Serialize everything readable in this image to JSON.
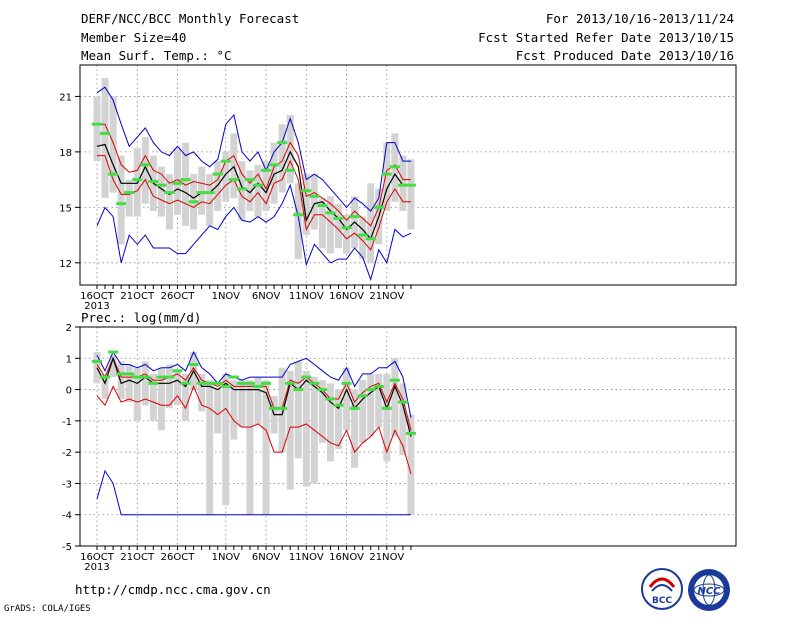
{
  "header": {
    "line1_left": "DERF/NCC/BCC Monthly Forecast",
    "line2_left": "Member Size=40",
    "line3_left": "Mean Surf. Temp.: °C",
    "line1_right": "For 2013/10/16-2013/11/24",
    "line2_right": "Fcst Started Refer Date 2013/10/15",
    "line3_right": "Fcst Produced Date 2013/10/16"
  },
  "footer": {
    "url": "http://cmdp.ncc.cma.gov.cn",
    "grads": "GrADS: COLA/IGES",
    "logo1_text": "BCC",
    "logo2_text": "NCC"
  },
  "chart_data": [
    {
      "type": "line",
      "subtitle": "",
      "ylabel": "Mean Surf. Temp.: °C",
      "ylim": [
        10.8,
        22.7
      ],
      "yticks": [
        12,
        15,
        18,
        21
      ],
      "x": [
        1,
        2,
        3,
        4,
        5,
        6,
        7,
        8,
        9,
        10,
        11,
        12,
        13,
        14,
        15,
        16,
        17,
        18,
        19,
        20,
        21,
        22,
        23,
        24,
        25,
        26,
        27,
        28,
        29,
        30,
        31,
        32,
        33,
        34,
        35,
        36,
        37,
        38,
        39,
        40
      ],
      "xtick_labels": [
        {
          "x": 1,
          "label": "16OCT"
        },
        {
          "x": 6,
          "label": "21OCT"
        },
        {
          "x": 11,
          "label": "26OCT"
        },
        {
          "x": 17,
          "label": "1NOV"
        },
        {
          "x": 22,
          "label": "6NOV"
        },
        {
          "x": 27,
          "label": "11NOV"
        },
        {
          "x": 32,
          "label": "16NOV"
        },
        {
          "x": 37,
          "label": "21NOV"
        }
      ],
      "year_label": "2013",
      "grid": true,
      "box_color": "#d3d3d3",
      "colors": {
        "mean": "#000000",
        "inner": "#d90000",
        "outer": "#0000cc",
        "median": "#44dd44"
      },
      "series": [
        {
          "role": "outer_max",
          "values": [
            21.2,
            21.5,
            20.8,
            19.5,
            18.3,
            18.8,
            19.3,
            18.5,
            18.0,
            17.8,
            18.3,
            17.8,
            18.0,
            17.5,
            17.2,
            17.6,
            19.5,
            20.0,
            18.0,
            17.5,
            18.0,
            17.0,
            18.0,
            18.5,
            19.8,
            18.5,
            16.5,
            16.8,
            16.5,
            16.0,
            15.5,
            15.0,
            15.5,
            15.2,
            14.8,
            15.5,
            18.5,
            18.5,
            17.5,
            17.5
          ]
        },
        {
          "role": "inner_max",
          "values": [
            19.5,
            19.5,
            18.5,
            17.3,
            16.9,
            17.0,
            17.8,
            17.0,
            16.8,
            16.3,
            16.5,
            16.2,
            16.4,
            16.3,
            16.2,
            16.5,
            17.5,
            17.8,
            16.8,
            16.3,
            16.8,
            16.0,
            17.2,
            17.5,
            18.5,
            17.8,
            15.6,
            15.8,
            15.5,
            15.2,
            14.8,
            14.3,
            14.8,
            14.4,
            14.0,
            15.0,
            17.0,
            17.3,
            16.5,
            16.5
          ]
        },
        {
          "role": "mean",
          "values": [
            18.3,
            18.4,
            17.3,
            16.3,
            16.3,
            16.3,
            17.2,
            16.3,
            16.0,
            15.7,
            16.0,
            15.8,
            15.5,
            15.8,
            15.8,
            16.2,
            16.8,
            17.2,
            16.1,
            15.8,
            16.3,
            15.8,
            16.8,
            17.0,
            18.0,
            17.2,
            14.3,
            15.2,
            15.3,
            14.8,
            14.4,
            13.8,
            14.2,
            13.8,
            13.3,
            14.5,
            16.0,
            16.8,
            16.2,
            16.2
          ]
        },
        {
          "role": "inner_min",
          "values": [
            17.8,
            17.8,
            16.5,
            15.7,
            15.7,
            15.9,
            16.5,
            15.6,
            15.4,
            15.2,
            15.4,
            15.2,
            15.0,
            15.3,
            15.2,
            15.7,
            16.2,
            16.5,
            15.6,
            15.3,
            15.8,
            15.2,
            16.3,
            16.5,
            17.5,
            16.5,
            13.8,
            14.6,
            14.6,
            14.2,
            13.8,
            13.3,
            13.6,
            13.2,
            12.7,
            13.9,
            15.3,
            16.0,
            15.3,
            15.3
          ]
        },
        {
          "role": "outer_min",
          "values": [
            14.0,
            15.0,
            14.5,
            12.0,
            13.5,
            13.0,
            13.5,
            12.8,
            12.8,
            12.8,
            12.5,
            12.5,
            13.0,
            13.5,
            14.0,
            13.8,
            14.5,
            15.0,
            14.3,
            14.2,
            14.5,
            14.2,
            14.5,
            15.2,
            16.2,
            14.5,
            11.9,
            13.0,
            12.5,
            12.0,
            12.2,
            12.2,
            12.8,
            12.3,
            11.1,
            12.7,
            12.0,
            13.8,
            13.4,
            13.6
          ]
        },
        {
          "role": "median",
          "values": [
            19.5,
            19.0,
            16.8,
            15.2,
            15.8,
            16.5,
            17.3,
            16.4,
            16.2,
            15.8,
            16.3,
            16.5,
            15.3,
            15.8,
            15.8,
            16.8,
            17.5,
            16.5,
            16.0,
            16.5,
            16.2,
            17.0,
            17.3,
            18.5,
            17.0,
            14.6,
            15.9,
            15.6,
            15.1,
            14.7,
            14.4,
            13.9,
            14.5,
            13.5,
            13.3,
            15.0,
            16.8,
            17.2,
            16.2,
            16.2
          ]
        },
        {
          "role": "box_top",
          "values": [
            21.0,
            22.0,
            21.0,
            17.8,
            16.5,
            18.2,
            18.8,
            17.8,
            17.2,
            16.8,
            18.2,
            18.5,
            16.8,
            17.2,
            16.8,
            17.5,
            18.0,
            19.0,
            17.5,
            17.0,
            17.3,
            17.5,
            18.5,
            19.5,
            20.0,
            16.3,
            16.8,
            16.8,
            15.5,
            15.6,
            15.2,
            14.6,
            15.6,
            14.5,
            16.3,
            16.0,
            18.5,
            19.0,
            17.8,
            17.6
          ]
        },
        {
          "role": "box_bottom",
          "values": [
            17.5,
            15.5,
            15.8,
            13.0,
            14.5,
            14.5,
            15.2,
            14.8,
            14.5,
            13.8,
            14.6,
            14.0,
            13.8,
            14.6,
            14.0,
            14.8,
            15.3,
            15.5,
            14.3,
            14.8,
            14.5,
            14.8,
            15.2,
            15.8,
            16.3,
            12.2,
            13.5,
            13.8,
            12.8,
            12.5,
            12.8,
            12.5,
            12.8,
            12.2,
            12.0,
            13.0,
            14.8,
            15.3,
            14.8,
            13.8
          ]
        }
      ]
    },
    {
      "type": "line",
      "subtitle": "Prec.: log(mm/d)",
      "ylim": [
        -5,
        2
      ],
      "yticks": [
        -5,
        -4,
        -3,
        -2,
        -1,
        0,
        1,
        2
      ],
      "x": [
        1,
        2,
        3,
        4,
        5,
        6,
        7,
        8,
        9,
        10,
        11,
        12,
        13,
        14,
        15,
        16,
        17,
        18,
        19,
        20,
        21,
        22,
        23,
        24,
        25,
        26,
        27,
        28,
        29,
        30,
        31,
        32,
        33,
        34,
        35,
        36,
        37,
        38,
        39,
        40
      ],
      "xtick_labels": [
        {
          "x": 1,
          "label": "16OCT"
        },
        {
          "x": 6,
          "label": "21OCT"
        },
        {
          "x": 11,
          "label": "26OCT"
        },
        {
          "x": 17,
          "label": "1NOV"
        },
        {
          "x": 22,
          "label": "6NOV"
        },
        {
          "x": 27,
          "label": "11NOV"
        },
        {
          "x": 32,
          "label": "16NOV"
        },
        {
          "x": 37,
          "label": "21NOV"
        }
      ],
      "year_label": "2013",
      "grid": true,
      "box_color": "#d3d3d3",
      "colors": {
        "mean": "#000000",
        "inner": "#d90000",
        "outer": "#0000cc",
        "median": "#44dd44"
      },
      "series": [
        {
          "role": "outer_max",
          "values": [
            1.1,
            0.6,
            1.2,
            0.8,
            0.8,
            0.7,
            0.8,
            0.6,
            0.7,
            0.7,
            0.8,
            0.6,
            1.2,
            0.7,
            0.5,
            0.2,
            0.5,
            0.4,
            0.3,
            0.4,
            0.4,
            0.4,
            0.4,
            0.4,
            0.8,
            0.9,
            1.0,
            0.8,
            0.6,
            0.4,
            0.3,
            0.7,
            0.1,
            0.5,
            0.5,
            0.7,
            0.7,
            0.9,
            0.4,
            -0.9
          ]
        },
        {
          "role": "inner_max",
          "values": [
            0.8,
            0.4,
            1.0,
            0.4,
            0.4,
            0.4,
            0.5,
            0.3,
            0.3,
            0.4,
            0.5,
            0.3,
            0.7,
            0.3,
            0.2,
            0.1,
            0.3,
            0.1,
            0.1,
            0.1,
            0.1,
            0.1,
            -0.6,
            -0.6,
            0.3,
            0.2,
            0.4,
            0.2,
            0.0,
            -0.3,
            -0.3,
            0.2,
            -0.4,
            -0.1,
            0.1,
            0.2,
            -0.4,
            0.2,
            -0.3,
            -1.3
          ]
        },
        {
          "role": "mean",
          "values": [
            0.7,
            0.2,
            1.0,
            0.2,
            0.3,
            0.2,
            0.4,
            0.2,
            0.2,
            0.2,
            0.3,
            0.1,
            0.6,
            0.1,
            0.1,
            0.0,
            0.2,
            0.0,
            0.0,
            0.0,
            0.0,
            -0.1,
            -0.8,
            -0.8,
            0.2,
            0.0,
            0.3,
            0.1,
            -0.1,
            -0.4,
            -0.6,
            0.0,
            -0.6,
            -0.3,
            -0.1,
            0.1,
            -0.6,
            0.1,
            -0.5,
            -1.5
          ]
        },
        {
          "role": "inner_min",
          "values": [
            -0.2,
            -0.5,
            0.1,
            -0.4,
            -0.3,
            -0.4,
            -0.3,
            -0.4,
            -0.5,
            -0.5,
            -0.2,
            -0.6,
            0.1,
            -0.5,
            -0.6,
            -0.8,
            -0.6,
            -1.0,
            -1.2,
            -1.2,
            -1.1,
            -1.3,
            -2.0,
            -2.0,
            -1.2,
            -1.2,
            -1.1,
            -1.3,
            -1.5,
            -1.7,
            -1.8,
            -1.3,
            -2.0,
            -1.7,
            -1.5,
            -1.2,
            -2.0,
            -1.3,
            -1.8,
            -2.7
          ]
        },
        {
          "role": "outer_min",
          "values": [
            -3.5,
            -2.6,
            -3.0,
            -4.0,
            -4.0,
            -4.0,
            -4.0,
            -4.0,
            -4.0,
            -4.0,
            -4.0,
            -4.0,
            -4.0,
            -4.0,
            -4.0,
            -4.0,
            -4.0,
            -4.0,
            -4.0,
            -4.0,
            -4.0,
            -4.0,
            -4.0,
            -4.0,
            -4.0,
            -4.0,
            -4.0,
            -4.0,
            -4.0,
            -4.0,
            -4.0,
            -4.0,
            -4.0,
            -4.0,
            -4.0,
            -4.0,
            -4.0,
            -4.0,
            -4.0,
            -4.0
          ]
        },
        {
          "role": "median",
          "values": [
            0.9,
            0.4,
            1.2,
            0.5,
            0.5,
            0.4,
            0.4,
            0.2,
            0.4,
            0.4,
            0.6,
            0.2,
            0.8,
            0.2,
            0.2,
            0.2,
            0.1,
            0.4,
            0.2,
            0.2,
            0.1,
            0.2,
            -0.6,
            -0.6,
            0.2,
            0.0,
            0.4,
            0.2,
            0.0,
            -0.3,
            -0.5,
            0.2,
            -0.6,
            -0.2,
            0.0,
            0.1,
            -0.6,
            0.3,
            -0.4,
            -1.4
          ]
        },
        {
          "role": "box_top",
          "values": [
            1.2,
            0.5,
            1.1,
            0.9,
            0.8,
            0.7,
            0.9,
            0.5,
            0.7,
            0.8,
            0.6,
            0.5,
            1.2,
            0.5,
            0.3,
            0.0,
            0.5,
            0.3,
            0.3,
            0.3,
            0.4,
            0.3,
            -0.2,
            0.7,
            0.6,
            0.9,
            0.6,
            0.4,
            0.3,
            0.2,
            0.0,
            0.7,
            0.0,
            0.3,
            0.5,
            0.5,
            0.5,
            1.0,
            0.2,
            -0.8
          ]
        },
        {
          "role": "box_bottom",
          "values": [
            0.2,
            -0.3,
            0.4,
            -0.3,
            -0.4,
            -1.0,
            -0.5,
            -1.0,
            -1.3,
            -0.6,
            -0.5,
            -1.0,
            0.0,
            -0.7,
            -4.0,
            -1.4,
            -3.7,
            -1.6,
            -1.2,
            -4.0,
            -1.1,
            -4.0,
            -1.4,
            -2.0,
            -3.2,
            -2.2,
            -3.1,
            -3.0,
            -1.7,
            -2.3,
            -1.9,
            -1.3,
            -2.5,
            -1.7,
            -1.5,
            -1.2,
            -2.3,
            -1.5,
            -2.1,
            -4.0
          ]
        }
      ]
    }
  ]
}
